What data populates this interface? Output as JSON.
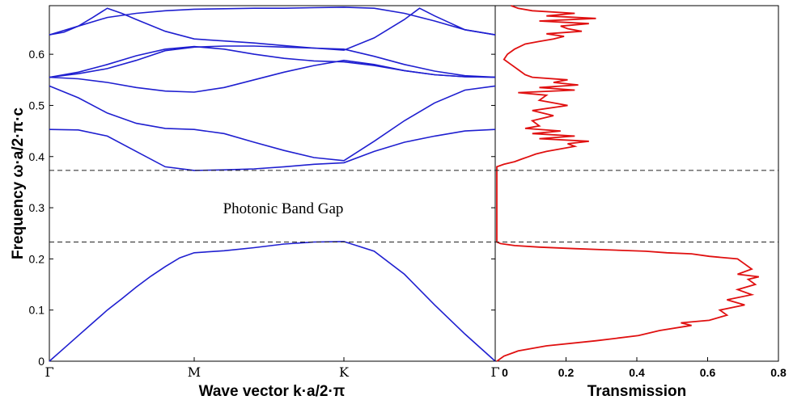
{
  "chart_data": [
    {
      "type": "line",
      "ylabel": "Frequency ω·a/2·π·c",
      "xlabel": "Wave vector k·a/2·π",
      "x_ticks": [
        "Γ",
        "M",
        "K",
        "Γ"
      ],
      "x_tick_positions": [
        0,
        1,
        2,
        3
      ],
      "ylim": [
        0,
        0.695
      ],
      "y_ticks": [
        "0",
        "0.1",
        "0.2",
        "0.3",
        "0.4",
        "0.5",
        "0.6"
      ],
      "y_tick_values": [
        0,
        0.1,
        0.2,
        0.3,
        0.4,
        0.5,
        0.6
      ],
      "line_color": "#1f1fd0",
      "band_gap": {
        "label": "Photonic Band Gap",
        "lower_edge": 0.233,
        "upper_edge": 0.373
      },
      "series": [
        {
          "x": [
            0,
            0.1,
            0.2,
            0.3,
            0.4,
            0.5,
            0.6,
            0.7,
            0.8,
            0.9,
            1.0,
            1.2,
            1.4,
            1.6,
            1.8,
            2.0,
            2.2,
            2.4,
            2.6,
            2.8,
            3.0
          ],
          "values": [
            0,
            0.025,
            0.05,
            0.075,
            0.1,
            0.122,
            0.145,
            0.166,
            0.185,
            0.202,
            0.212,
            0.216,
            0.222,
            0.229,
            0.233,
            0.234,
            0.215,
            0.17,
            0.11,
            0.053,
            0
          ]
        },
        {
          "x": [
            0,
            0.2,
            0.4,
            0.6,
            0.8,
            1.0,
            1.2,
            1.4,
            1.6,
            1.8,
            2.0,
            2.2,
            2.4,
            2.6,
            2.8,
            3.0
          ],
          "values": [
            0.453,
            0.452,
            0.44,
            0.41,
            0.38,
            0.373,
            0.374,
            0.376,
            0.38,
            0.385,
            0.388,
            0.41,
            0.428,
            0.44,
            0.45,
            0.453
          ]
        },
        {
          "x": [
            0,
            0.2,
            0.4,
            0.6,
            0.8,
            1.0,
            1.2,
            1.4,
            1.6,
            1.8,
            2.0,
            2.2,
            2.4,
            2.6,
            2.8,
            3.0
          ],
          "values": [
            0.538,
            0.515,
            0.485,
            0.465,
            0.455,
            0.453,
            0.445,
            0.428,
            0.412,
            0.398,
            0.392,
            0.43,
            0.47,
            0.505,
            0.53,
            0.538
          ]
        },
        {
          "x": [
            0,
            0.2,
            0.4,
            0.6,
            0.8,
            1.0,
            1.2,
            1.4,
            1.6,
            1.8,
            2.0,
            2.2,
            2.4,
            2.6,
            2.8,
            3.0
          ],
          "values": [
            0.555,
            0.552,
            0.545,
            0.535,
            0.528,
            0.526,
            0.535,
            0.55,
            0.565,
            0.578,
            0.588,
            0.58,
            0.568,
            0.56,
            0.556,
            0.555
          ]
        },
        {
          "x": [
            0,
            0.2,
            0.4,
            0.6,
            0.8,
            1.0,
            1.2,
            1.4,
            1.6,
            1.8,
            2.0,
            2.2,
            2.4,
            2.6,
            2.8,
            3.0
          ],
          "values": [
            0.555,
            0.565,
            0.58,
            0.597,
            0.61,
            0.615,
            0.61,
            0.6,
            0.592,
            0.587,
            0.585,
            0.578,
            0.568,
            0.56,
            0.556,
            0.555
          ]
        },
        {
          "x": [
            0,
            0.2,
            0.4,
            0.6,
            0.8,
            1.0,
            1.2,
            1.4,
            1.6,
            1.8,
            2.0,
            2.2,
            2.4,
            2.6,
            2.8,
            3.0
          ],
          "values": [
            0.555,
            0.562,
            0.572,
            0.588,
            0.607,
            0.614,
            0.616,
            0.616,
            0.614,
            0.612,
            0.61,
            0.596,
            0.58,
            0.567,
            0.558,
            0.555
          ]
        },
        {
          "x": [
            0,
            0.2,
            0.4,
            0.6,
            0.8,
            1.0,
            1.2,
            1.4,
            1.6,
            1.8,
            2.0,
            2.2,
            2.4,
            2.6,
            2.8,
            3.0
          ],
          "values": [
            0.638,
            0.655,
            0.672,
            0.68,
            0.685,
            0.688,
            0.689,
            0.69,
            0.69,
            0.691,
            0.692,
            0.69,
            0.68,
            0.665,
            0.648,
            0.638
          ]
        },
        {
          "x": [
            0,
            0.1,
            0.2,
            0.3,
            0.4,
            0.5,
            0.6,
            0.8,
            1.0,
            1.2,
            1.4,
            1.6,
            1.8,
            2.0,
            2.2,
            2.4,
            2.5,
            2.6,
            2.8,
            3.0
          ],
          "values": [
            0.638,
            0.643,
            0.655,
            0.672,
            0.69,
            0.68,
            0.668,
            0.645,
            0.63,
            0.626,
            0.622,
            0.617,
            0.612,
            0.608,
            0.632,
            0.668,
            0.69,
            0.675,
            0.648,
            0.638
          ]
        }
      ]
    },
    {
      "type": "line",
      "xlabel": "Transmission",
      "xlim": [
        0,
        0.8
      ],
      "x_ticks": [
        "0",
        "0.2",
        "0.4",
        "0.6",
        "0.8"
      ],
      "x_tick_values": [
        0,
        0.2,
        0.4,
        0.6,
        0.8
      ],
      "ylim": [
        0,
        0.695
      ],
      "line_color": "#e01010",
      "series": [
        {
          "frequency": [
            0.0,
            0.01,
            0.02,
            0.03,
            0.04,
            0.05,
            0.06,
            0.07,
            0.075,
            0.08,
            0.09,
            0.1,
            0.11,
            0.12,
            0.13,
            0.14,
            0.15,
            0.16,
            0.165,
            0.17,
            0.18,
            0.19,
            0.2,
            0.205,
            0.21,
            0.212,
            0.215,
            0.218,
            0.22,
            0.223,
            0.226,
            0.23,
            0.233,
            0.38,
            0.385,
            0.39,
            0.395,
            0.4,
            0.405,
            0.41,
            0.415,
            0.42,
            0.425,
            0.43,
            0.435,
            0.44,
            0.445,
            0.45,
            0.455,
            0.46,
            0.47,
            0.48,
            0.49,
            0.5,
            0.51,
            0.52,
            0.525,
            0.53,
            0.535,
            0.54,
            0.545,
            0.55,
            0.555,
            0.56,
            0.57,
            0.58,
            0.59,
            0.6,
            0.61,
            0.62,
            0.625,
            0.63,
            0.635,
            0.64,
            0.645,
            0.65,
            0.655,
            0.66,
            0.665,
            0.67,
            0.675,
            0.68,
            0.685,
            0.69,
            0.695
          ],
          "transmission": [
            0.0,
            0.02,
            0.06,
            0.14,
            0.28,
            0.4,
            0.46,
            0.55,
            0.52,
            0.6,
            0.65,
            0.63,
            0.7,
            0.65,
            0.72,
            0.68,
            0.73,
            0.71,
            0.74,
            0.68,
            0.72,
            0.7,
            0.68,
            0.6,
            0.55,
            0.48,
            0.42,
            0.3,
            0.22,
            0.12,
            0.05,
            0.01,
            0.0,
            0.0,
            0.02,
            0.05,
            0.07,
            0.09,
            0.11,
            0.14,
            0.18,
            0.22,
            0.2,
            0.26,
            0.12,
            0.22,
            0.1,
            0.18,
            0.08,
            0.12,
            0.1,
            0.16,
            0.1,
            0.2,
            0.12,
            0.14,
            0.06,
            0.22,
            0.12,
            0.23,
            0.16,
            0.2,
            0.1,
            0.08,
            0.06,
            0.04,
            0.02,
            0.03,
            0.05,
            0.08,
            0.12,
            0.16,
            0.19,
            0.14,
            0.24,
            0.2,
            0.18,
            0.26,
            0.12,
            0.28,
            0.14,
            0.22,
            0.1,
            0.06,
            0.04
          ]
        }
      ],
      "band_gap_edges": [
        0.233,
        0.373
      ]
    }
  ],
  "annotation": "Photonic Band Gap"
}
